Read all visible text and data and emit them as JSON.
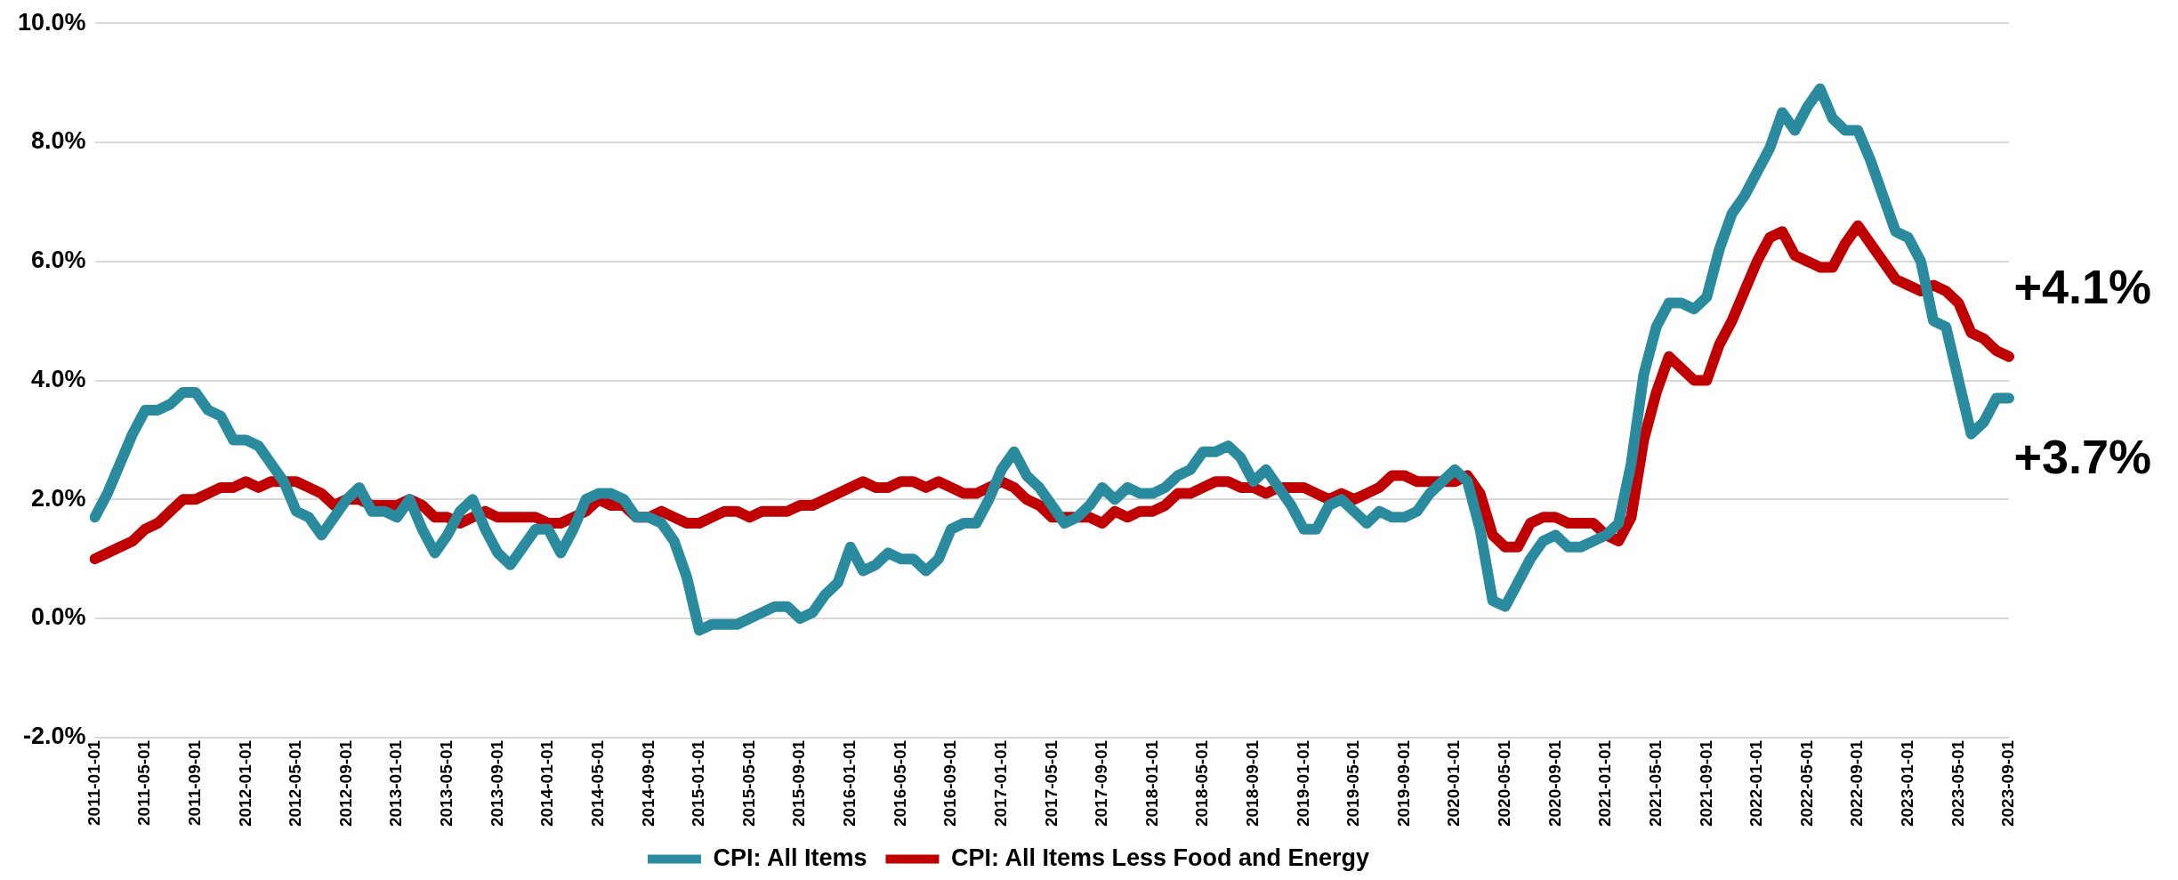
{
  "chart_data": {
    "type": "line",
    "categories": [
      "2011-01-01",
      null,
      null,
      null,
      "2011-05-01",
      null,
      null,
      null,
      "2011-09-01",
      null,
      null,
      null,
      "2012-01-01",
      null,
      null,
      null,
      "2012-05-01",
      null,
      null,
      null,
      "2012-09-01",
      null,
      null,
      null,
      "2013-01-01",
      null,
      null,
      null,
      "2013-05-01",
      null,
      null,
      null,
      "2013-09-01",
      null,
      null,
      null,
      "2014-01-01",
      null,
      null,
      null,
      "2014-05-01",
      null,
      null,
      null,
      "2014-09-01",
      null,
      null,
      null,
      "2015-01-01",
      null,
      null,
      null,
      "2015-05-01",
      null,
      null,
      null,
      "2015-09-01",
      null,
      null,
      null,
      "2016-01-01",
      null,
      null,
      null,
      "2016-05-01",
      null,
      null,
      null,
      "2016-09-01",
      null,
      null,
      null,
      "2017-01-01",
      null,
      null,
      null,
      "2017-05-01",
      null,
      null,
      null,
      "2017-09-01",
      null,
      null,
      null,
      "2018-01-01",
      null,
      null,
      null,
      "2018-05-01",
      null,
      null,
      null,
      "2018-09-01",
      null,
      null,
      null,
      "2019-01-01",
      null,
      null,
      null,
      "2019-05-01",
      null,
      null,
      null,
      "2019-09-01",
      null,
      null,
      null,
      "2020-01-01",
      null,
      null,
      null,
      "2020-05-01",
      null,
      null,
      null,
      "2020-09-01",
      null,
      null,
      null,
      "2021-01-01",
      null,
      null,
      null,
      "2021-05-01",
      null,
      null,
      null,
      "2021-09-01",
      null,
      null,
      null,
      "2022-01-01",
      null,
      null,
      null,
      "2022-05-01",
      null,
      null,
      null,
      "2022-09-01",
      null,
      null,
      null,
      "2023-01-01",
      null,
      null,
      null,
      "2023-05-01",
      null,
      null,
      null,
      "2023-09-01"
    ],
    "series": [
      {
        "name": "CPI: All Items",
        "color": "#2a8a9e",
        "values": [
          1.7,
          2.1,
          2.6,
          3.1,
          3.5,
          3.5,
          3.6,
          3.8,
          3.8,
          3.5,
          3.4,
          3.0,
          3.0,
          2.9,
          2.6,
          2.3,
          1.8,
          1.7,
          1.4,
          1.7,
          2.0,
          2.2,
          1.8,
          1.8,
          1.7,
          2.0,
          1.5,
          1.1,
          1.4,
          1.8,
          2.0,
          1.5,
          1.1,
          0.9,
          1.2,
          1.5,
          1.5,
          1.1,
          1.5,
          2.0,
          2.1,
          2.1,
          2.0,
          1.7,
          1.7,
          1.6,
          1.3,
          0.7,
          -0.2,
          -0.1,
          -0.1,
          -0.1,
          0.0,
          0.1,
          0.2,
          0.2,
          0.0,
          0.1,
          0.4,
          0.6,
          1.2,
          0.8,
          0.9,
          1.1,
          1.0,
          1.0,
          0.8,
          1.0,
          1.5,
          1.6,
          1.6,
          2.0,
          2.5,
          2.8,
          2.4,
          2.2,
          1.9,
          1.6,
          1.7,
          1.9,
          2.2,
          2.0,
          2.2,
          2.1,
          2.1,
          2.2,
          2.4,
          2.5,
          2.8,
          2.8,
          2.9,
          2.7,
          2.3,
          2.5,
          2.2,
          1.9,
          1.5,
          1.5,
          1.9,
          2.0,
          1.8,
          1.6,
          1.8,
          1.7,
          1.7,
          1.8,
          2.1,
          2.3,
          2.5,
          2.3,
          1.5,
          0.3,
          0.2,
          0.6,
          1.0,
          1.3,
          1.4,
          1.2,
          1.2,
          1.3,
          1.4,
          1.6,
          2.6,
          4.1,
          4.9,
          5.3,
          5.3,
          5.2,
          5.4,
          6.2,
          6.8,
          7.1,
          7.5,
          7.9,
          8.5,
          8.2,
          8.6,
          8.9,
          8.4,
          8.2,
          8.2,
          7.7,
          7.1,
          6.5,
          6.4,
          6.0,
          5.0,
          4.9,
          4.0,
          3.1,
          3.3,
          3.7,
          3.7
        ]
      },
      {
        "name": "CPI: All Items Less Food and Energy",
        "color": "#c00000",
        "values": [
          1.0,
          1.1,
          1.2,
          1.3,
          1.5,
          1.6,
          1.8,
          2.0,
          2.0,
          2.1,
          2.2,
          2.2,
          2.3,
          2.2,
          2.3,
          2.3,
          2.3,
          2.2,
          2.1,
          1.9,
          2.0,
          2.0,
          1.9,
          1.9,
          1.9,
          2.0,
          1.9,
          1.7,
          1.7,
          1.6,
          1.7,
          1.8,
          1.7,
          1.7,
          1.7,
          1.7,
          1.6,
          1.6,
          1.7,
          1.8,
          2.0,
          1.9,
          1.9,
          1.7,
          1.7,
          1.8,
          1.7,
          1.6,
          1.6,
          1.7,
          1.8,
          1.8,
          1.7,
          1.8,
          1.8,
          1.8,
          1.9,
          1.9,
          2.0,
          2.1,
          2.2,
          2.3,
          2.2,
          2.2,
          2.3,
          2.3,
          2.2,
          2.3,
          2.2,
          2.1,
          2.1,
          2.2,
          2.3,
          2.2,
          2.0,
          1.9,
          1.7,
          1.7,
          1.7,
          1.7,
          1.6,
          1.8,
          1.7,
          1.8,
          1.8,
          1.9,
          2.1,
          2.1,
          2.2,
          2.3,
          2.3,
          2.2,
          2.2,
          2.1,
          2.2,
          2.2,
          2.2,
          2.1,
          2.0,
          2.1,
          2.0,
          2.1,
          2.2,
          2.4,
          2.4,
          2.3,
          2.3,
          2.3,
          2.3,
          2.4,
          2.1,
          1.4,
          1.2,
          1.2,
          1.6,
          1.7,
          1.7,
          1.6,
          1.6,
          1.6,
          1.4,
          1.3,
          1.7,
          3.0,
          3.8,
          4.4,
          4.2,
          4.0,
          4.0,
          4.6,
          5.0,
          5.5,
          6.0,
          6.4,
          6.5,
          6.1,
          6.0,
          5.9,
          5.9,
          6.3,
          6.6,
          6.3,
          6.0,
          5.7,
          5.6,
          5.5,
          5.6,
          5.5,
          5.3,
          4.8,
          4.7,
          4.5,
          4.4
        ]
      }
    ],
    "ylim": [
      -2,
      10
    ],
    "yticks": [
      {
        "value": -2,
        "label": "-2.0%"
      },
      {
        "value": 0,
        "label": "0.0%"
      },
      {
        "value": 2,
        "label": "2.0%"
      },
      {
        "value": 4,
        "label": "4.0%"
      },
      {
        "value": 6,
        "label": "6.0%"
      },
      {
        "value": 8,
        "label": "8.0%"
      },
      {
        "value": 10,
        "label": "10.0%"
      }
    ],
    "grid": "y",
    "legend": "bottom",
    "marker": "none",
    "line_style": "solid",
    "annotations": [
      "+4.1%",
      "+3.7%"
    ]
  }
}
